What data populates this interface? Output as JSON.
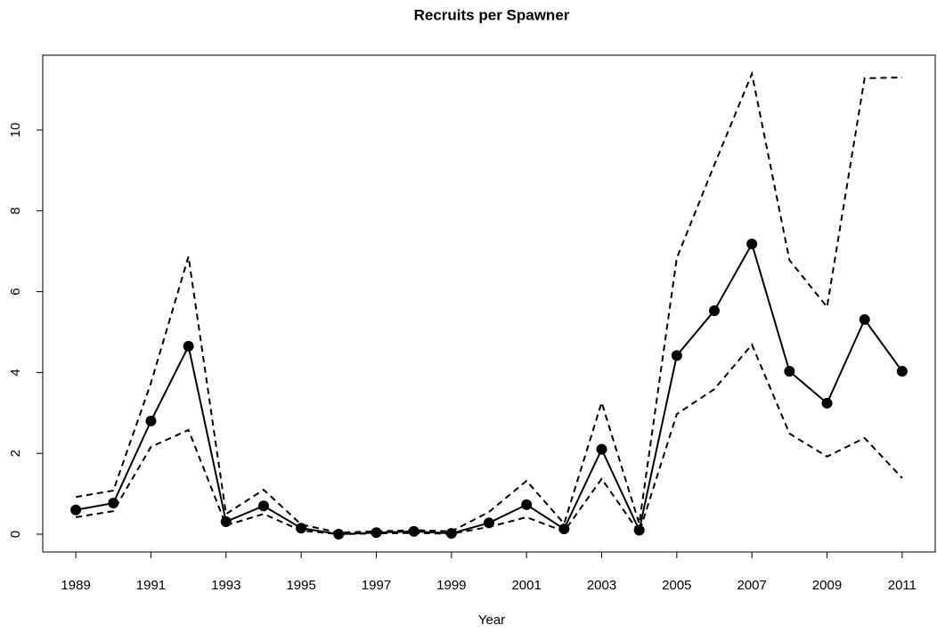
{
  "chart_data": {
    "type": "line",
    "title": "Recruits per Spawner",
    "x_label": "Year",
    "x": [
      1989,
      1990,
      1991,
      1992,
      1993,
      1994,
      1995,
      1996,
      1997,
      1998,
      1999,
      2000,
      2001,
      2002,
      2003,
      2004,
      2005,
      2006,
      2007,
      2008,
      2009,
      2010,
      2011
    ],
    "series": [
      {
        "color": "#000000",
        "dashed": false,
        "markers": true,
        "values": [
          0.6,
          0.77,
          2.8,
          4.65,
          0.31,
          0.7,
          0.15,
          0.0,
          0.04,
          0.07,
          0.02,
          0.28,
          0.73,
          0.13,
          2.1,
          0.1,
          4.42,
          5.53,
          7.18,
          4.03,
          3.24,
          5.31,
          4.03
        ]
      },
      {
        "color": "#000000",
        "dashed": true,
        "markers": false,
        "values": [
          0.92,
          1.08,
          3.74,
          6.87,
          0.5,
          1.1,
          0.24,
          0.04,
          0.07,
          0.1,
          0.07,
          0.55,
          1.32,
          0.26,
          3.26,
          0.26,
          6.83,
          9.14,
          11.39,
          6.78,
          5.62,
          11.28,
          11.3
        ]
      },
      {
        "color": "#000000",
        "dashed": true,
        "markers": false,
        "values": [
          0.42,
          0.57,
          2.16,
          2.58,
          0.22,
          0.5,
          0.09,
          0.0,
          0.02,
          0.03,
          0.01,
          0.18,
          0.42,
          0.07,
          1.37,
          0.04,
          2.97,
          3.59,
          4.69,
          2.49,
          1.92,
          2.38,
          1.39
        ]
      }
    ],
    "xlim": [
      1988.12,
      2011.88
    ],
    "xticks": [
      1989,
      1991,
      1993,
      1995,
      1997,
      1999,
      2001,
      2003,
      2005,
      2007,
      2009,
      2011
    ],
    "ylim": [
      -0.44,
      11.85
    ],
    "yticks": [
      0,
      2,
      4,
      6,
      8,
      10
    ],
    "grid": false
  }
}
